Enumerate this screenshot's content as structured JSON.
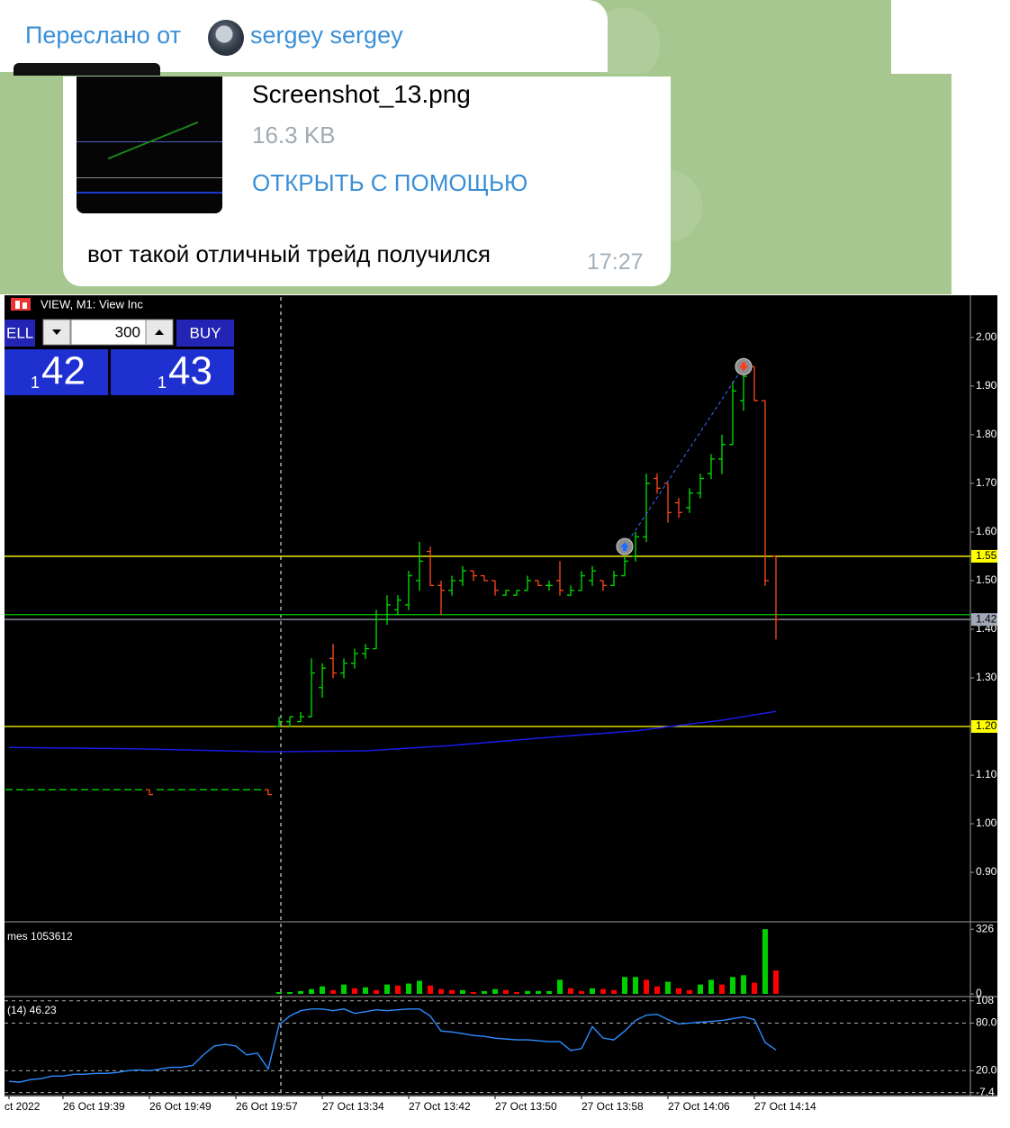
{
  "forward": {
    "prefix": "Переслано от",
    "name": "sergey sergey"
  },
  "file": {
    "name": "Screenshot_13.png",
    "size": "16.3 KB",
    "action": "ОТКРЫТЬ С ПОМОЩЬЮ"
  },
  "message": {
    "text": "вот такой отличный трейд получился",
    "time": "17:27"
  },
  "chart_data": {
    "type": "ohlc",
    "title": "VIEW, M1:  View Inc",
    "trade_panel": {
      "sell": "ELL",
      "lots": "300",
      "buy": "BUY",
      "bid_prefix": "1",
      "bid": "42",
      "ask_prefix": "1",
      "ask": "43"
    },
    "categories": [
      "ct 2022",
      null,
      null,
      null,
      null,
      "26 Oct 19:39",
      null,
      null,
      null,
      null,
      null,
      null,
      null,
      "26 Oct 19:49",
      null,
      null,
      null,
      null,
      null,
      null,
      null,
      "26 Oct 19:57",
      null,
      null,
      null,
      null,
      null,
      null,
      null,
      "27 Oct 13:34",
      null,
      null,
      null,
      null,
      null,
      null,
      null,
      "27 Oct 13:42",
      null,
      null,
      null,
      null,
      null,
      null,
      null,
      "27 Oct 13:50",
      null,
      null,
      null,
      null,
      null,
      null,
      null,
      "27 Oct 13:58",
      null,
      null,
      null,
      null,
      null,
      null,
      null,
      "27 Oct 14:06",
      null,
      null,
      null,
      null,
      null,
      null,
      null,
      "27 Oct 14:14",
      null,
      null
    ],
    "open": [
      1.07,
      1.07,
      1.07,
      1.07,
      1.07,
      1.07,
      1.07,
      1.07,
      1.07,
      1.07,
      1.07,
      1.07,
      1.07,
      1.07,
      1.07,
      1.07,
      1.07,
      1.07,
      1.07,
      1.07,
      1.07,
      1.07,
      1.07,
      1.07,
      1.07,
      1.2,
      1.21,
      1.21,
      1.22,
      1.28,
      1.34,
      1.31,
      1.33,
      1.35,
      1.36,
      1.42,
      1.44,
      1.45,
      1.5,
      1.56,
      1.49,
      1.48,
      1.5,
      1.52,
      1.51,
      1.5,
      1.47,
      1.47,
      1.48,
      1.5,
      1.49,
      1.5,
      1.47,
      1.48,
      1.5,
      1.5,
      1.49,
      1.51,
      1.55,
      1.59,
      1.71,
      1.7,
      1.66,
      1.65,
      1.68,
      1.72,
      1.75,
      1.78,
      1.87,
      1.94,
      1.87,
      1.55
    ],
    "high": [
      1.07,
      1.07,
      1.07,
      1.07,
      1.07,
      1.07,
      1.07,
      1.07,
      1.07,
      1.07,
      1.07,
      1.07,
      1.07,
      1.07,
      1.07,
      1.07,
      1.07,
      1.07,
      1.07,
      1.07,
      1.07,
      1.07,
      1.07,
      1.07,
      1.07,
      1.22,
      1.22,
      1.23,
      1.34,
      1.33,
      1.37,
      1.34,
      1.36,
      1.37,
      1.44,
      1.47,
      1.47,
      1.52,
      1.58,
      1.57,
      1.5,
      1.51,
      1.53,
      1.52,
      1.51,
      1.5,
      1.48,
      1.48,
      1.51,
      1.5,
      1.5,
      1.54,
      1.49,
      1.52,
      1.53,
      1.5,
      1.52,
      1.55,
      1.6,
      1.72,
      1.72,
      1.7,
      1.67,
      1.69,
      1.72,
      1.76,
      1.8,
      1.91,
      1.94,
      1.94,
      1.87,
      1.55
    ],
    "low": [
      1.07,
      1.07,
      1.07,
      1.07,
      1.07,
      1.07,
      1.07,
      1.07,
      1.07,
      1.07,
      1.07,
      1.07,
      1.07,
      1.06,
      1.07,
      1.07,
      1.07,
      1.07,
      1.07,
      1.07,
      1.07,
      1.07,
      1.07,
      1.07,
      1.06,
      1.2,
      1.2,
      1.21,
      1.22,
      1.26,
      1.3,
      1.3,
      1.32,
      1.34,
      1.36,
      1.41,
      1.43,
      1.44,
      1.48,
      1.49,
      1.43,
      1.47,
      1.49,
      1.5,
      1.5,
      1.47,
      1.47,
      1.47,
      1.48,
      1.49,
      1.48,
      1.47,
      1.47,
      1.48,
      1.49,
      1.48,
      1.49,
      1.51,
      1.54,
      1.58,
      1.68,
      1.62,
      1.63,
      1.64,
      1.67,
      1.71,
      1.72,
      1.78,
      1.85,
      1.87,
      1.49,
      1.38
    ],
    "close": [
      1.07,
      1.07,
      1.07,
      1.07,
      1.07,
      1.07,
      1.07,
      1.07,
      1.07,
      1.07,
      1.07,
      1.07,
      1.07,
      1.06,
      1.07,
      1.07,
      1.07,
      1.07,
      1.07,
      1.07,
      1.07,
      1.07,
      1.07,
      1.07,
      1.06,
      1.21,
      1.22,
      1.22,
      1.31,
      1.32,
      1.31,
      1.33,
      1.35,
      1.36,
      1.42,
      1.45,
      1.46,
      1.51,
      1.54,
      1.49,
      1.48,
      1.5,
      1.52,
      1.51,
      1.5,
      1.48,
      1.48,
      1.48,
      1.5,
      1.49,
      1.49,
      1.48,
      1.48,
      1.51,
      1.52,
      1.49,
      1.51,
      1.54,
      1.59,
      1.7,
      1.69,
      1.64,
      1.64,
      1.68,
      1.71,
      1.75,
      1.78,
      1.89,
      1.92,
      1.87,
      1.5,
      1.42
    ],
    "up_color": "#00e000",
    "down_color": "#ff4a1a",
    "ylim": [
      0.802,
      2.083
    ],
    "yticks": [
      {
        "value": 2.0,
        "label": "2.00"
      },
      {
        "value": 1.9,
        "label": "1.90"
      },
      {
        "value": 1.8,
        "label": "1.80"
      },
      {
        "value": 1.7,
        "label": "1.70"
      },
      {
        "value": 1.6,
        "label": "1.60"
      },
      {
        "value": 1.5,
        "label": "1.50"
      },
      {
        "value": 1.4,
        "label": "1.40"
      },
      {
        "value": 1.3,
        "label": "1.30"
      },
      {
        "value": 1.2,
        "label": "1.20"
      },
      {
        "value": 1.1,
        "label": "1.10"
      },
      {
        "value": 1.0,
        "label": "1.00"
      },
      {
        "value": 0.9,
        "label": "0.90"
      }
    ],
    "grid": false,
    "levels": [
      {
        "value": 1.55,
        "label": "1.55",
        "color": "#ffff00"
      },
      {
        "value": 1.43,
        "color": "#00c800"
      },
      {
        "value": 1.42,
        "label": "1.42",
        "color": "#a0a8b8"
      },
      {
        "value": 1.2,
        "label": "1.20",
        "color": "#ffff00"
      }
    ],
    "moving_average": {
      "color": "#1a1ae6",
      "x": [
        0,
        12,
        24,
        33,
        41,
        49,
        58,
        66,
        71
      ],
      "values": [
        1.157,
        1.154,
        1.148,
        1.15,
        1.161,
        1.176,
        1.191,
        1.213,
        1.231
      ]
    },
    "trade": {
      "color": "#3a6cff",
      "x": [
        57,
        68
      ],
      "values": [
        1.57,
        1.94
      ]
    },
    "volumes": {
      "label": "mes 1053612",
      "up_color": "#00d000",
      "down_color": "#ff0000",
      "ylim": [
        0,
        345
      ],
      "yticks": [
        326,
        0
      ],
      "values": [
        0,
        0,
        0,
        0,
        0,
        0,
        0,
        0,
        0,
        0,
        0,
        0,
        0,
        0,
        0,
        0,
        0,
        0,
        0,
        0,
        0,
        0,
        0,
        0,
        0,
        9,
        9,
        14,
        24,
        38,
        19,
        47,
        28,
        33,
        19,
        47,
        42,
        52,
        66,
        42,
        24,
        19,
        19,
        9,
        14,
        24,
        19,
        9,
        14,
        14,
        14,
        71,
        28,
        14,
        28,
        24,
        19,
        85,
        85,
        71,
        38,
        61,
        28,
        19,
        47,
        71,
        47,
        85,
        94,
        56,
        326,
        118
      ]
    },
    "rsi": {
      "label": "(14) 46.23",
      "color": "#2d8cff",
      "ylim": [
        -9,
        110
      ],
      "yticks": [
        108,
        {
          "value": 80,
          "label": "80.0"
        },
        {
          "value": 20,
          "label": "20.0"
        },
        -7.4
      ],
      "values": [
        6.7,
        5.6,
        8.9,
        10.0,
        13.3,
        13.3,
        15.6,
        15.6,
        16.7,
        16.7,
        17.8,
        20.0,
        21.1,
        20.0,
        22.2,
        24.4,
        24.4,
        26.7,
        40.0,
        51.1,
        53.3,
        51.1,
        40.0,
        42.2,
        22.2,
        77.8,
        88.9,
        95.6,
        97.8,
        97.8,
        95.6,
        97.8,
        92.2,
        94.4,
        96.7,
        95.6,
        96.7,
        97.8,
        97.8,
        88.9,
        70.0,
        68.9,
        66.7,
        64.4,
        63.3,
        61.1,
        60.0,
        58.9,
        58.9,
        57.8,
        56.7,
        56.7,
        45.6,
        47.8,
        75.6,
        61.1,
        58.9,
        70.0,
        83.3,
        90.0,
        91.1,
        84.4,
        78.9,
        80.0,
        81.1,
        82.2,
        83.3,
        85.6,
        87.8,
        84.4,
        55.6,
        46.23
      ]
    }
  }
}
